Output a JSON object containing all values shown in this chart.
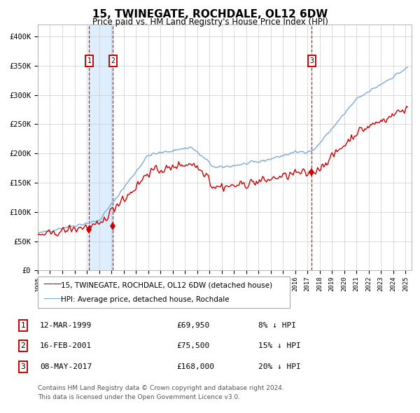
{
  "title": "15, TWINEGATE, ROCHDALE, OL12 6DW",
  "subtitle": "Price paid vs. HM Land Registry's House Price Index (HPI)",
  "ylabel_ticks": [
    "£0",
    "£50K",
    "£100K",
    "£150K",
    "£200K",
    "£250K",
    "£300K",
    "£350K",
    "£400K"
  ],
  "ytick_values": [
    0,
    50000,
    100000,
    150000,
    200000,
    250000,
    300000,
    350000,
    400000
  ],
  "ylim": [
    0,
    420000
  ],
  "sale_date_strs": [
    "1999-03-12",
    "2001-02-16",
    "2017-05-08"
  ],
  "sale_prices": [
    69950,
    75500,
    168000
  ],
  "sale_labels": [
    "1",
    "2",
    "3"
  ],
  "sale_info": [
    {
      "label": "1",
      "date": "12-MAR-1999",
      "price": "£69,950",
      "hpi_pct": "8% ↓ HPI"
    },
    {
      "label": "2",
      "date": "16-FEB-2001",
      "price": "£75,500",
      "hpi_pct": "15% ↓ HPI"
    },
    {
      "label": "3",
      "date": "08-MAY-2017",
      "price": "£168,000",
      "hpi_pct": "20% ↓ HPI"
    }
  ],
  "legend_entries": [
    "15, TWINEGATE, ROCHDALE, OL12 6DW (detached house)",
    "HPI: Average price, detached house, Rochdale"
  ],
  "property_color": "#cc0000",
  "hpi_color": "#7aabdb",
  "background_color": "#ffffff",
  "grid_color": "#cccccc",
  "vline_color": "#cc0000",
  "vband_color": "#ddeeff",
  "footnote_line1": "Contains HM Land Registry data © Crown copyright and database right 2024.",
  "footnote_line2": "This data is licensed under the Open Government Licence v3.0.",
  "xstart_year": 1995,
  "xend_year": 2025
}
